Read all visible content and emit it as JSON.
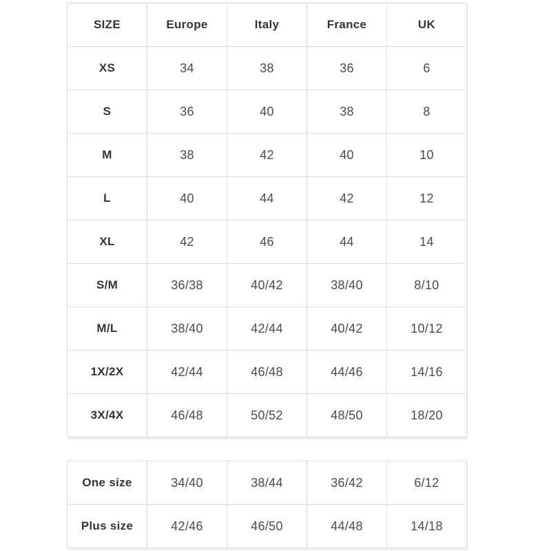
{
  "colors": {
    "background": "#ffffff",
    "border": "#dcdcdc",
    "header_text": "#33333a",
    "cell_text": "#4a4a52"
  },
  "tables": {
    "main": {
      "name": "size-conversion-table",
      "headers": [
        "SIZE",
        "Europe",
        "Italy",
        "France",
        "UK"
      ],
      "rows": [
        {
          "label": "XS",
          "values": [
            "34",
            "38",
            "36",
            "6"
          ]
        },
        {
          "label": "S",
          "values": [
            "36",
            "40",
            "38",
            "8"
          ]
        },
        {
          "label": "M",
          "values": [
            "38",
            "42",
            "40",
            "10"
          ]
        },
        {
          "label": "L",
          "values": [
            "40",
            "44",
            "42",
            "12"
          ]
        },
        {
          "label": "XL",
          "values": [
            "42",
            "46",
            "44",
            "14"
          ]
        },
        {
          "label": "S/M",
          "values": [
            "36/38",
            "40/42",
            "38/40",
            "8/10"
          ]
        },
        {
          "label": "M/L",
          "values": [
            "38/40",
            "42/44",
            "40/42",
            "10/12"
          ]
        },
        {
          "label": "1X/2X",
          "values": [
            "42/44",
            "46/48",
            "44/46",
            "14/16"
          ]
        },
        {
          "label": "3X/4X",
          "values": [
            "46/48",
            "50/52",
            "48/50",
            "18/20"
          ]
        }
      ]
    },
    "special": {
      "name": "special-sizes-table",
      "headers": null,
      "rows": [
        {
          "label": "One size",
          "values": [
            "34/40",
            "38/44",
            "36/42",
            "6/12"
          ]
        },
        {
          "label": "Plus size",
          "values": [
            "42/46",
            "46/50",
            "44/48",
            "14/18"
          ]
        }
      ]
    }
  }
}
